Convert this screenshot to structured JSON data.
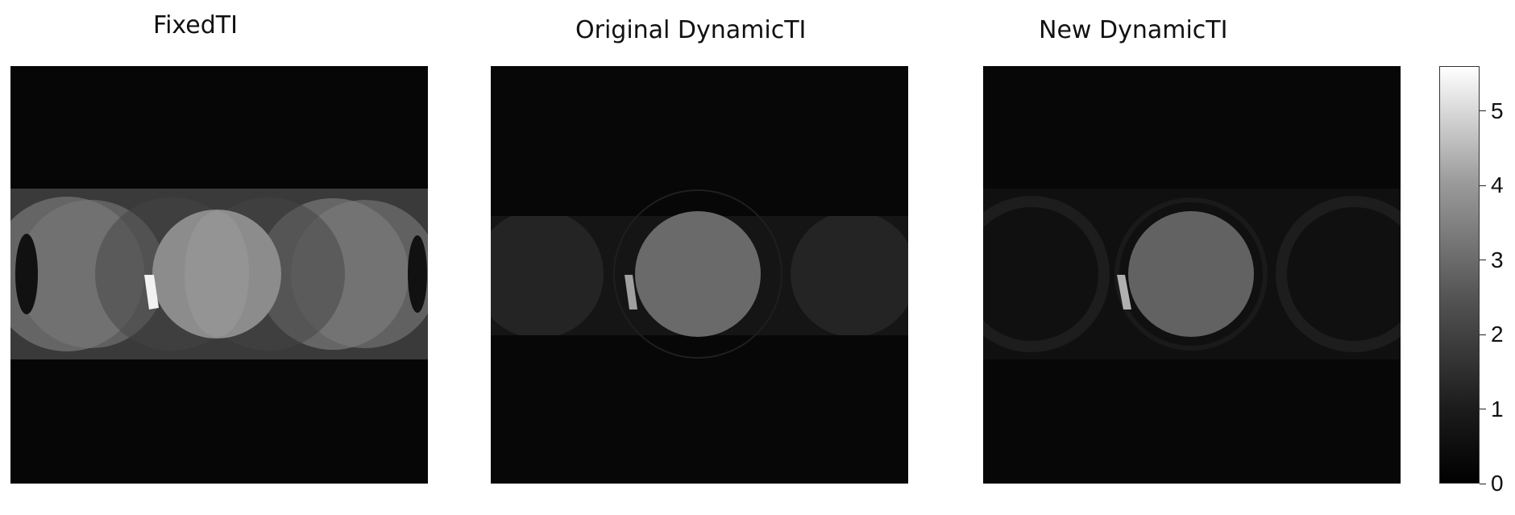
{
  "titles": {
    "fixed": "FixedTI",
    "original": "Original DynamicTI",
    "new": "New DynamicTI"
  },
  "colorbar": {
    "min": 0,
    "max": 5.6,
    "ticks": [
      "0",
      "1",
      "2",
      "3",
      "4",
      "5"
    ],
    "colormap": "gray"
  },
  "colors": {
    "background": "#ffffff",
    "panel_bg": "#050505"
  }
}
